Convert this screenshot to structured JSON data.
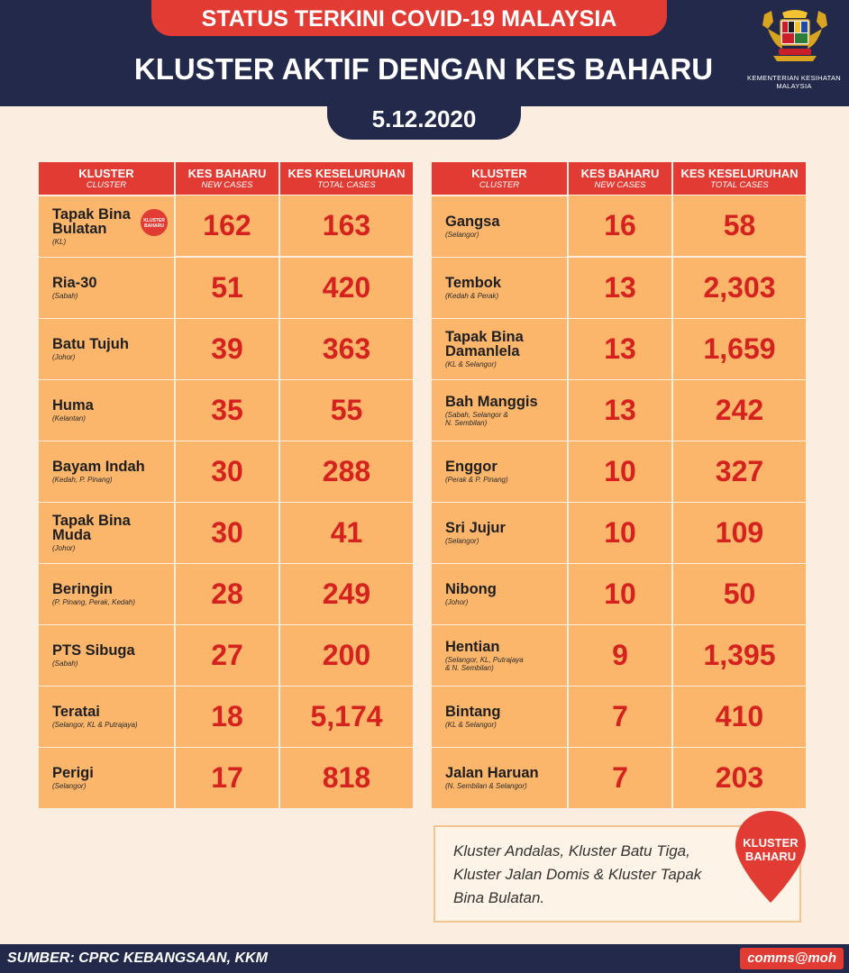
{
  "header": {
    "title": "STATUS TERKINI COVID-19 MALAYSIA",
    "headline": "KLUSTER AKTIF DENGAN KES BAHARU",
    "date": "5.12.2020",
    "ministry_line1": "KEMENTERIAN KESIHATAN",
    "ministry_line2": "MALAYSIA"
  },
  "columns": {
    "kluster": "KLUSTER",
    "kluster_en": "CLUSTER",
    "new": "KES BAHARU",
    "new_en": "NEW CASES",
    "total": "KES KESELURUHAN",
    "total_en": "TOTAL CASES"
  },
  "left_rows": [
    {
      "name": "Tapak Bina\nBulatan",
      "loc": "(KL)",
      "new": "162",
      "total": "163",
      "badge": "KLUSTER\nBAHARU"
    },
    {
      "name": "Ria-30",
      "loc": "(Sabah)",
      "new": "51",
      "total": "420"
    },
    {
      "name": "Batu Tujuh",
      "loc": "(Johor)",
      "new": "39",
      "total": "363"
    },
    {
      "name": "Huma",
      "loc": "(Kelantan)",
      "new": "35",
      "total": "55"
    },
    {
      "name": "Bayam Indah",
      "loc": "(Kedah, P. Pinang)",
      "new": "30",
      "total": "288"
    },
    {
      "name": "Tapak Bina\nMuda",
      "loc": "(Johor)",
      "new": "30",
      "total": "41"
    },
    {
      "name": "Beringin",
      "loc": "(P. Pinang, Perak, Kedah)",
      "new": "28",
      "total": "249"
    },
    {
      "name": "PTS Sibuga",
      "loc": "(Sabah)",
      "new": "27",
      "total": "200"
    },
    {
      "name": "Teratai",
      "loc": "(Selangor, KL & Putrajaya)",
      "new": "18",
      "total": "5,174"
    },
    {
      "name": "Perigi",
      "loc": "(Selangor)",
      "new": "17",
      "total": "818"
    }
  ],
  "right_rows": [
    {
      "name": "Gangsa",
      "loc": "(Selangor)",
      "new": "16",
      "total": "58"
    },
    {
      "name": "Tembok",
      "loc": "(Kedah & Perak)",
      "new": "13",
      "total": "2,303"
    },
    {
      "name": "Tapak Bina\nDamanlela",
      "loc": "(KL & Selangor)",
      "new": "13",
      "total": "1,659"
    },
    {
      "name": "Bah Manggis",
      "loc": "(Sabah, Selangor &\nN. Sembilan)",
      "new": "13",
      "total": "242"
    },
    {
      "name": "Enggor",
      "loc": "(Perak & P. Pinang)",
      "new": "10",
      "total": "327"
    },
    {
      "name": "Sri Jujur",
      "loc": "(Selangor)",
      "new": "10",
      "total": "109"
    },
    {
      "name": "Nibong",
      "loc": "(Johor)",
      "new": "10",
      "total": "50"
    },
    {
      "name": "Hentian",
      "loc": "(Selangor, KL, Putrajaya\n& N. Sembilan)",
      "new": "9",
      "total": "1,395"
    },
    {
      "name": "Bintang",
      "loc": "(KL & Selangor)",
      "new": "7",
      "total": "410"
    },
    {
      "name": "Jalan Haruan",
      "loc": "(N. Sembilan & Selangor)",
      "new": "7",
      "total": "203"
    }
  ],
  "note": {
    "text": "Kluster Andalas, Kluster Batu Tiga, Kluster Jalan Domis & Kluster Tapak Bina Bulatan.",
    "badge_line1": "KLUSTER",
    "badge_line2": "BAHARU"
  },
  "footer": {
    "source": "SUMBER: CPRC KEBANGSAAN, KKM",
    "handle": "comms@moh"
  },
  "colors": {
    "navy": "#23294a",
    "red": "#e23b33",
    "cell": "#fbb66c",
    "number": "#d6221f",
    "background": "#fbeee0"
  },
  "icons": [
    "jata-negara-crest-icon",
    "location-pin-icon"
  ]
}
